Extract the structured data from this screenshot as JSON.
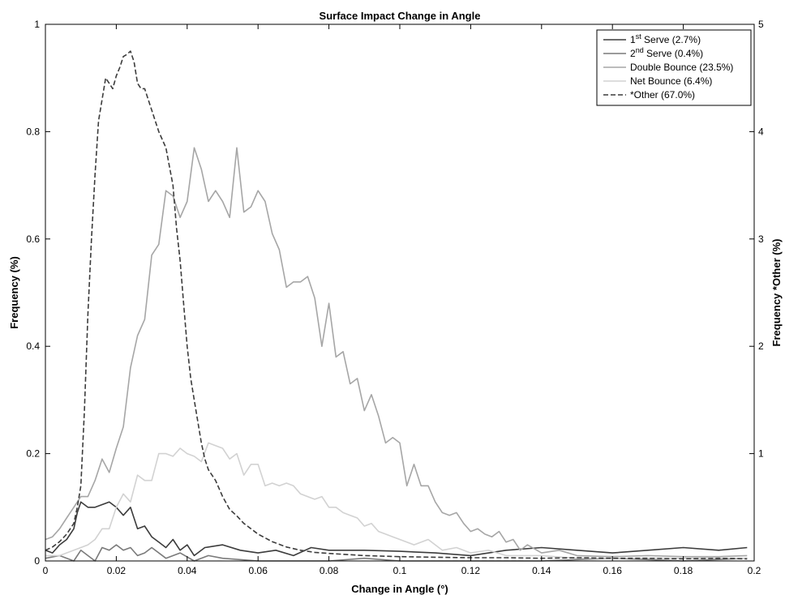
{
  "chart_data": {
    "type": "line",
    "title": "Surface Impact Change in Angle",
    "xlabel": "Change in Angle (°)",
    "ylabel": "Frequency (%)",
    "y2label": "Frequency *Other (%)",
    "xlim": [
      0,
      0.2
    ],
    "ylim": [
      0,
      1
    ],
    "y2lim": [
      0,
      5
    ],
    "xticks": [
      0,
      0.02,
      0.04,
      0.06,
      0.08,
      0.1,
      0.12,
      0.14,
      0.16,
      0.18,
      0.2
    ],
    "xtick_labels": [
      "0",
      "0.02",
      "0.04",
      "0.06",
      "0.08",
      "0.1",
      "0.12",
      "0.14",
      "0.16",
      "0.18",
      "0.2"
    ],
    "yticks": [
      0,
      0.2,
      0.4,
      0.6,
      0.8,
      1
    ],
    "ytick_labels": [
      "0",
      "0.2",
      "0.4",
      "0.6",
      "0.8",
      "1"
    ],
    "y2ticks": [
      1,
      2,
      3,
      4,
      5
    ],
    "y2tick_labels": [
      "1",
      "2",
      "3",
      "4",
      "5"
    ],
    "grid": false,
    "legend_position": "top-right",
    "series": [
      {
        "name": "1st Serve (2.7%)",
        "name_base": "1",
        "name_sup": "st",
        "name_rest": " Serve (2.7%)",
        "color": "#3c3c3c",
        "dash": "",
        "axis": "left",
        "x": [
          0,
          0.002,
          0.004,
          0.006,
          0.008,
          0.009,
          0.01,
          0.012,
          0.014,
          0.016,
          0.018,
          0.02,
          0.022,
          0.024,
          0.026,
          0.028,
          0.03,
          0.032,
          0.034,
          0.036,
          0.038,
          0.04,
          0.042,
          0.045,
          0.05,
          0.055,
          0.06,
          0.065,
          0.07,
          0.075,
          0.08,
          0.09,
          0.1,
          0.11,
          0.12,
          0.13,
          0.14,
          0.15,
          0.16,
          0.17,
          0.18,
          0.19,
          0.198
        ],
        "values": [
          0.02,
          0.015,
          0.03,
          0.04,
          0.06,
          0.09,
          0.11,
          0.1,
          0.1,
          0.105,
          0.11,
          0.1,
          0.085,
          0.1,
          0.06,
          0.065,
          0.045,
          0.035,
          0.025,
          0.04,
          0.02,
          0.03,
          0.01,
          0.025,
          0.03,
          0.02,
          0.015,
          0.02,
          0.01,
          0.025,
          0.02,
          0.02,
          0.018,
          0.015,
          0.01,
          0.02,
          0.025,
          0.02,
          0.015,
          0.02,
          0.025,
          0.02,
          0.025
        ]
      },
      {
        "name": "2nd Serve (0.4%)",
        "name_base": "2",
        "name_sup": "nd",
        "name_rest": " Serve (0.4%)",
        "color": "#7a7a7a",
        "dash": "",
        "axis": "left",
        "x": [
          0,
          0.004,
          0.008,
          0.01,
          0.012,
          0.014,
          0.016,
          0.018,
          0.02,
          0.022,
          0.024,
          0.026,
          0.028,
          0.03,
          0.034,
          0.038,
          0.042,
          0.046,
          0.05,
          0.06,
          0.07,
          0.08,
          0.09,
          0.1,
          0.12,
          0.14,
          0.16,
          0.18,
          0.198
        ],
        "values": [
          0.005,
          0.01,
          0.0,
          0.02,
          0.01,
          0.0,
          0.025,
          0.02,
          0.03,
          0.02,
          0.025,
          0.01,
          0.015,
          0.025,
          0.005,
          0.015,
          0.0,
          0.01,
          0.005,
          0.0,
          0.0,
          0.0,
          0.005,
          0.0,
          0.0,
          0.0,
          0.005,
          0.0,
          0.005
        ]
      },
      {
        "name": "Double Bounce (23.5%)",
        "name_base": "Double Bounce (23.5%)",
        "name_sup": "",
        "name_rest": "",
        "color": "#a6a6a6",
        "dash": "",
        "axis": "left",
        "x": [
          0,
          0.002,
          0.004,
          0.006,
          0.008,
          0.01,
          0.012,
          0.014,
          0.016,
          0.018,
          0.02,
          0.022,
          0.024,
          0.026,
          0.028,
          0.03,
          0.032,
          0.034,
          0.036,
          0.038,
          0.04,
          0.042,
          0.044,
          0.046,
          0.048,
          0.05,
          0.052,
          0.054,
          0.056,
          0.058,
          0.06,
          0.062,
          0.064,
          0.066,
          0.068,
          0.07,
          0.072,
          0.074,
          0.076,
          0.078,
          0.08,
          0.082,
          0.084,
          0.086,
          0.088,
          0.09,
          0.092,
          0.094,
          0.096,
          0.098,
          0.1,
          0.102,
          0.104,
          0.106,
          0.108,
          0.11,
          0.112,
          0.114,
          0.116,
          0.118,
          0.12,
          0.122,
          0.124,
          0.126,
          0.128,
          0.13,
          0.132,
          0.134,
          0.136,
          0.14,
          0.145,
          0.15,
          0.16,
          0.17,
          0.18,
          0.19,
          0.198
        ],
        "values": [
          0.04,
          0.045,
          0.06,
          0.08,
          0.1,
          0.12,
          0.12,
          0.15,
          0.19,
          0.165,
          0.21,
          0.25,
          0.36,
          0.42,
          0.45,
          0.57,
          0.59,
          0.69,
          0.68,
          0.64,
          0.67,
          0.77,
          0.73,
          0.67,
          0.69,
          0.67,
          0.64,
          0.77,
          0.65,
          0.66,
          0.69,
          0.67,
          0.61,
          0.58,
          0.51,
          0.52,
          0.52,
          0.53,
          0.49,
          0.4,
          0.48,
          0.38,
          0.39,
          0.33,
          0.34,
          0.28,
          0.31,
          0.27,
          0.22,
          0.23,
          0.22,
          0.14,
          0.18,
          0.14,
          0.14,
          0.11,
          0.09,
          0.085,
          0.09,
          0.07,
          0.055,
          0.06,
          0.05,
          0.045,
          0.055,
          0.035,
          0.04,
          0.02,
          0.03,
          0.015,
          0.02,
          0.01,
          0.008,
          0.01,
          0.008,
          0.008,
          0.01
        ]
      },
      {
        "name": "Net Bounce (6.4%)",
        "name_base": "Net Bounce (6.4%)",
        "name_sup": "",
        "name_rest": "",
        "color": "#d2d2d2",
        "dash": "",
        "axis": "left",
        "x": [
          0,
          0.004,
          0.008,
          0.01,
          0.012,
          0.014,
          0.016,
          0.018,
          0.02,
          0.022,
          0.024,
          0.026,
          0.028,
          0.03,
          0.032,
          0.034,
          0.036,
          0.038,
          0.04,
          0.042,
          0.044,
          0.046,
          0.048,
          0.05,
          0.052,
          0.054,
          0.056,
          0.058,
          0.06,
          0.062,
          0.064,
          0.066,
          0.068,
          0.07,
          0.072,
          0.074,
          0.076,
          0.078,
          0.08,
          0.082,
          0.084,
          0.086,
          0.088,
          0.09,
          0.092,
          0.094,
          0.096,
          0.098,
          0.1,
          0.104,
          0.108,
          0.112,
          0.116,
          0.12,
          0.125,
          0.13,
          0.14,
          0.15,
          0.16,
          0.18,
          0.198
        ],
        "values": [
          0.01,
          0.01,
          0.02,
          0.025,
          0.03,
          0.04,
          0.06,
          0.06,
          0.1,
          0.125,
          0.11,
          0.16,
          0.15,
          0.15,
          0.2,
          0.2,
          0.195,
          0.21,
          0.2,
          0.195,
          0.185,
          0.22,
          0.215,
          0.21,
          0.19,
          0.2,
          0.16,
          0.18,
          0.18,
          0.14,
          0.145,
          0.14,
          0.145,
          0.14,
          0.125,
          0.12,
          0.115,
          0.12,
          0.1,
          0.1,
          0.09,
          0.085,
          0.08,
          0.065,
          0.07,
          0.055,
          0.05,
          0.045,
          0.04,
          0.03,
          0.04,
          0.02,
          0.025,
          0.015,
          0.02,
          0.01,
          0.01,
          0.005,
          0.005,
          0.005,
          0.005
        ]
      },
      {
        "name": "*Other (67.0%)",
        "name_base": "*Other (67.0%)",
        "name_sup": "",
        "name_rest": "",
        "color": "#3c3c3c",
        "dash": "6,3",
        "axis": "right",
        "x": [
          0,
          0.002,
          0.004,
          0.006,
          0.008,
          0.009,
          0.01,
          0.011,
          0.012,
          0.013,
          0.014,
          0.015,
          0.016,
          0.017,
          0.018,
          0.019,
          0.02,
          0.021,
          0.022,
          0.023,
          0.024,
          0.025,
          0.026,
          0.027,
          0.028,
          0.03,
          0.032,
          0.034,
          0.036,
          0.037,
          0.038,
          0.039,
          0.04,
          0.041,
          0.042,
          0.043,
          0.044,
          0.045,
          0.046,
          0.047,
          0.048,
          0.05,
          0.052,
          0.054,
          0.056,
          0.058,
          0.06,
          0.064,
          0.068,
          0.072,
          0.076,
          0.08,
          0.09,
          0.1,
          0.11,
          0.12,
          0.13,
          0.14,
          0.15,
          0.16,
          0.17,
          0.18,
          0.19,
          0.198
        ],
        "values": [
          0.1,
          0.13,
          0.18,
          0.25,
          0.35,
          0.5,
          0.7,
          1.4,
          2.3,
          3.0,
          3.6,
          4.1,
          4.3,
          4.5,
          4.45,
          4.4,
          4.52,
          4.6,
          4.7,
          4.72,
          4.75,
          4.65,
          4.45,
          4.4,
          4.4,
          4.2,
          4.0,
          3.85,
          3.5,
          3.1,
          2.8,
          2.4,
          2.0,
          1.7,
          1.5,
          1.3,
          1.1,
          0.95,
          0.85,
          0.8,
          0.75,
          0.6,
          0.48,
          0.42,
          0.35,
          0.3,
          0.25,
          0.18,
          0.13,
          0.1,
          0.08,
          0.07,
          0.05,
          0.04,
          0.035,
          0.03,
          0.03,
          0.025,
          0.03,
          0.025,
          0.025,
          0.02,
          0.025,
          0.02
        ]
      }
    ]
  }
}
